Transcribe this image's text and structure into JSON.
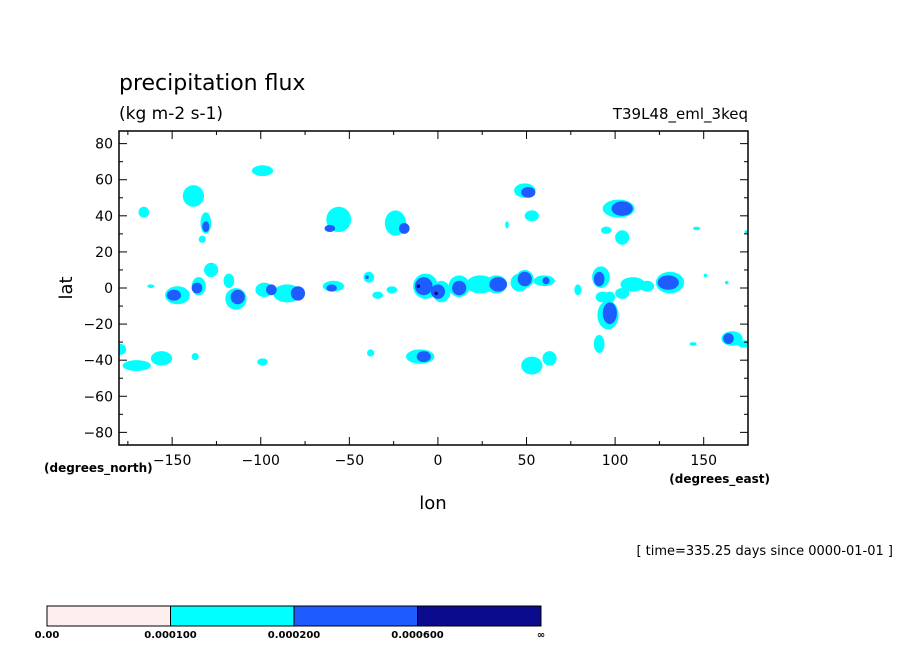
{
  "chart_data": {
    "type": "heatmap",
    "title": "precipitation flux",
    "subtitle": "(kg m-2 s-1)",
    "run_label": "T39L48_eml_3keq",
    "xlabel": "lon",
    "ylabel": "lat",
    "x_units": "(degrees_east)",
    "y_units": "(degrees_north)",
    "time_label": "[ time=335.25 days since 0000-01-01 ]",
    "xlim": [
      -180,
      175
    ],
    "ylim": [
      -87,
      87
    ],
    "xticks": [
      {
        "value": -150,
        "label": "−150"
      },
      {
        "value": -100,
        "label": "−100"
      },
      {
        "value": -50,
        "label": "−50"
      },
      {
        "value": 0,
        "label": "0"
      },
      {
        "value": 50,
        "label": "50"
      },
      {
        "value": 100,
        "label": "100"
      },
      {
        "value": 150,
        "label": "150"
      }
    ],
    "yticks": [
      {
        "value": 80,
        "label": "80"
      },
      {
        "value": 60,
        "label": "60"
      },
      {
        "value": 40,
        "label": "40"
      },
      {
        "value": 20,
        "label": "20"
      },
      {
        "value": 0,
        "label": "0"
      },
      {
        "value": -20,
        "label": "−20"
      },
      {
        "value": -40,
        "label": "−40"
      },
      {
        "value": -60,
        "label": "−60"
      },
      {
        "value": -80,
        "label": "−80"
      }
    ],
    "levels": [
      {
        "min": "0.00",
        "max": "0.000100",
        "color": "#ffeeee"
      },
      {
        "min": "0.000100",
        "max": "0.000200",
        "color": "#00ffff"
      },
      {
        "min": "0.000200",
        "max": "0.000600",
        "color": "#1e5cff"
      },
      {
        "min": "0.000600",
        "max": "∞",
        "color": "#0a0a8c"
      }
    ],
    "colorbar_labels": [
      "0.00",
      "0.000100",
      "0.000200",
      "0.000600",
      "∞"
    ],
    "regions": [
      {
        "lon": -179,
        "lat": -34,
        "rx": 3,
        "ry": 3,
        "level": 1
      },
      {
        "lon": -170,
        "lat": -43,
        "rx": 8,
        "ry": 3,
        "level": 1
      },
      {
        "lon": -156,
        "lat": -39,
        "rx": 6,
        "ry": 4,
        "level": 1
      },
      {
        "lon": -166,
        "lat": 42,
        "rx": 3,
        "ry": 3,
        "level": 1
      },
      {
        "lon": -162,
        "lat": 1,
        "rx": 2,
        "ry": 1,
        "level": 1
      },
      {
        "lon": -147,
        "lat": -4,
        "rx": 7,
        "ry": 5,
        "level": 1
      },
      {
        "lon": -149,
        "lat": -4,
        "rx": 4,
        "ry": 3,
        "level": 2
      },
      {
        "lon": -135,
        "lat": 1,
        "rx": 4,
        "ry": 5,
        "level": 1
      },
      {
        "lon": -136,
        "lat": 0,
        "rx": 3,
        "ry": 3,
        "level": 2
      },
      {
        "lon": -128,
        "lat": 10,
        "rx": 4,
        "ry": 4,
        "level": 1
      },
      {
        "lon": -118,
        "lat": 4,
        "rx": 3,
        "ry": 4,
        "level": 1
      },
      {
        "lon": -114,
        "lat": -6,
        "rx": 6,
        "ry": 6,
        "level": 1
      },
      {
        "lon": -113,
        "lat": -5,
        "rx": 4,
        "ry": 4,
        "level": 2
      },
      {
        "lon": -137,
        "lat": -38,
        "rx": 2,
        "ry": 2,
        "level": 1
      },
      {
        "lon": -138,
        "lat": 51,
        "rx": 6,
        "ry": 6,
        "level": 1
      },
      {
        "lon": -131,
        "lat": 36,
        "rx": 3,
        "ry": 6,
        "level": 1
      },
      {
        "lon": -131,
        "lat": 34,
        "rx": 2,
        "ry": 3,
        "level": 2
      },
      {
        "lon": -133,
        "lat": 27,
        "rx": 2,
        "ry": 2,
        "level": 1
      },
      {
        "lon": -99,
        "lat": 65,
        "rx": 6,
        "ry": 3,
        "level": 1
      },
      {
        "lon": -99,
        "lat": -41,
        "rx": 3,
        "ry": 2,
        "level": 1
      },
      {
        "lon": -98,
        "lat": -1,
        "rx": 5,
        "ry": 4,
        "level": 1
      },
      {
        "lon": -94,
        "lat": -1,
        "rx": 3,
        "ry": 3,
        "level": 2
      },
      {
        "lon": -85,
        "lat": -3,
        "rx": 8,
        "ry": 5,
        "level": 1
      },
      {
        "lon": -79,
        "lat": -3,
        "rx": 4,
        "ry": 4,
        "level": 2
      },
      {
        "lon": -59,
        "lat": 1,
        "rx": 6,
        "ry": 3,
        "level": 1
      },
      {
        "lon": -60,
        "lat": 0,
        "rx": 3,
        "ry": 2,
        "level": 2
      },
      {
        "lon": -56,
        "lat": 38,
        "rx": 7,
        "ry": 7,
        "level": 1
      },
      {
        "lon": -61,
        "lat": 33,
        "rx": 3,
        "ry": 2,
        "level": 2
      },
      {
        "lon": -39,
        "lat": 6,
        "rx": 3,
        "ry": 3,
        "level": 1
      },
      {
        "lon": -40,
        "lat": 6,
        "rx": 1,
        "ry": 1,
        "level": 2
      },
      {
        "lon": -38,
        "lat": -36,
        "rx": 2,
        "ry": 2,
        "level": 1
      },
      {
        "lon": -34,
        "lat": -4,
        "rx": 3,
        "ry": 2,
        "level": 1
      },
      {
        "lon": -26,
        "lat": -1,
        "rx": 3,
        "ry": 2,
        "level": 1
      },
      {
        "lon": -24,
        "lat": 36,
        "rx": 6,
        "ry": 7,
        "level": 1
      },
      {
        "lon": -19,
        "lat": 33,
        "rx": 3,
        "ry": 3,
        "level": 2
      },
      {
        "lon": -10,
        "lat": -38,
        "rx": 8,
        "ry": 4,
        "level": 1
      },
      {
        "lon": -8,
        "lat": -38,
        "rx": 4,
        "ry": 3,
        "level": 2
      },
      {
        "lon": -7,
        "lat": 1,
        "rx": 7,
        "ry": 7,
        "level": 1
      },
      {
        "lon": -8,
        "lat": 1,
        "rx": 5,
        "ry": 5,
        "level": 2
      },
      {
        "lon": -11,
        "lat": 1,
        "rx": 1,
        "ry": 1,
        "level": 3
      },
      {
        "lon": 2,
        "lat": -2,
        "rx": 5,
        "ry": 6,
        "level": 1
      },
      {
        "lon": 0,
        "lat": -2,
        "rx": 4,
        "ry": 4,
        "level": 2
      },
      {
        "lon": -1,
        "lat": -3,
        "rx": 1,
        "ry": 1,
        "level": 3
      },
      {
        "lon": 12,
        "lat": 1,
        "rx": 6,
        "ry": 6,
        "level": 1
      },
      {
        "lon": 12,
        "lat": 0,
        "rx": 4,
        "ry": 4,
        "level": 2
      },
      {
        "lon": 24,
        "lat": 2,
        "rx": 8,
        "ry": 5,
        "level": 1
      },
      {
        "lon": 33,
        "lat": 2,
        "rx": 6,
        "ry": 5,
        "level": 1
      },
      {
        "lon": 34,
        "lat": 2,
        "rx": 5,
        "ry": 4,
        "level": 2
      },
      {
        "lon": 46,
        "lat": 3,
        "rx": 5,
        "ry": 5,
        "level": 1
      },
      {
        "lon": 49,
        "lat": 5,
        "rx": 5,
        "ry": 5,
        "level": 1
      },
      {
        "lon": 49,
        "lat": 5,
        "rx": 4,
        "ry": 4,
        "level": 2
      },
      {
        "lon": 60,
        "lat": 4,
        "rx": 6,
        "ry": 3,
        "level": 1
      },
      {
        "lon": 61,
        "lat": 4,
        "rx": 2,
        "ry": 2,
        "level": 2
      },
      {
        "lon": 49,
        "lat": 54,
        "rx": 6,
        "ry": 4,
        "level": 1
      },
      {
        "lon": 51,
        "lat": 53,
        "rx": 4,
        "ry": 3,
        "level": 2
      },
      {
        "lon": 53,
        "lat": 40,
        "rx": 4,
        "ry": 3,
        "level": 1
      },
      {
        "lon": 39,
        "lat": 35,
        "rx": 1,
        "ry": 2,
        "level": 1
      },
      {
        "lon": 53,
        "lat": -43,
        "rx": 6,
        "ry": 5,
        "level": 1
      },
      {
        "lon": 63,
        "lat": -39,
        "rx": 4,
        "ry": 4,
        "level": 1
      },
      {
        "lon": 79,
        "lat": -1,
        "rx": 2,
        "ry": 3,
        "level": 1
      },
      {
        "lon": 92,
        "lat": 6,
        "rx": 5,
        "ry": 6,
        "level": 1
      },
      {
        "lon": 91,
        "lat": 5,
        "rx": 3,
        "ry": 4,
        "level": 2
      },
      {
        "lon": 93,
        "lat": -5,
        "rx": 4,
        "ry": 3,
        "level": 1
      },
      {
        "lon": 97,
        "lat": -5,
        "rx": 3,
        "ry": 3,
        "level": 1
      },
      {
        "lon": 96,
        "lat": -15,
        "rx": 6,
        "ry": 8,
        "level": 1
      },
      {
        "lon": 97,
        "lat": -14,
        "rx": 4,
        "ry": 6,
        "level": 2
      },
      {
        "lon": 91,
        "lat": -31,
        "rx": 3,
        "ry": 5,
        "level": 1
      },
      {
        "lon": 110,
        "lat": 2,
        "rx": 7,
        "ry": 4,
        "level": 1
      },
      {
        "lon": 104,
        "lat": -3,
        "rx": 4,
        "ry": 3,
        "level": 1
      },
      {
        "lon": 118,
        "lat": 1,
        "rx": 4,
        "ry": 3,
        "level": 1
      },
      {
        "lon": 131,
        "lat": 3,
        "rx": 8,
        "ry": 6,
        "level": 1
      },
      {
        "lon": 130,
        "lat": 3,
        "rx": 6,
        "ry": 4,
        "level": 2
      },
      {
        "lon": 102,
        "lat": 44,
        "rx": 9,
        "ry": 5,
        "level": 1
      },
      {
        "lon": 104,
        "lat": 44,
        "rx": 6,
        "ry": 4,
        "level": 2
      },
      {
        "lon": 95,
        "lat": 32,
        "rx": 3,
        "ry": 2,
        "level": 1
      },
      {
        "lon": 104,
        "lat": 28,
        "rx": 4,
        "ry": 4,
        "level": 1
      },
      {
        "lon": 146,
        "lat": 33,
        "rx": 2,
        "ry": 1,
        "level": 1
      },
      {
        "lon": 144,
        "lat": -31,
        "rx": 2,
        "ry": 1,
        "level": 1
      },
      {
        "lon": 166,
        "lat": -28,
        "rx": 6,
        "ry": 4,
        "level": 1
      },
      {
        "lon": 164,
        "lat": -28,
        "rx": 3,
        "ry": 3,
        "level": 2
      },
      {
        "lon": 173,
        "lat": -31,
        "rx": 4,
        "ry": 2,
        "level": 1
      },
      {
        "lon": 174,
        "lat": 31,
        "rx": 1,
        "ry": 1,
        "level": 1
      },
      {
        "lon": 151,
        "lat": 7,
        "rx": 1,
        "ry": 1,
        "level": 1
      },
      {
        "lon": 163,
        "lat": 3,
        "rx": 1,
        "ry": 1,
        "level": 1
      }
    ]
  }
}
